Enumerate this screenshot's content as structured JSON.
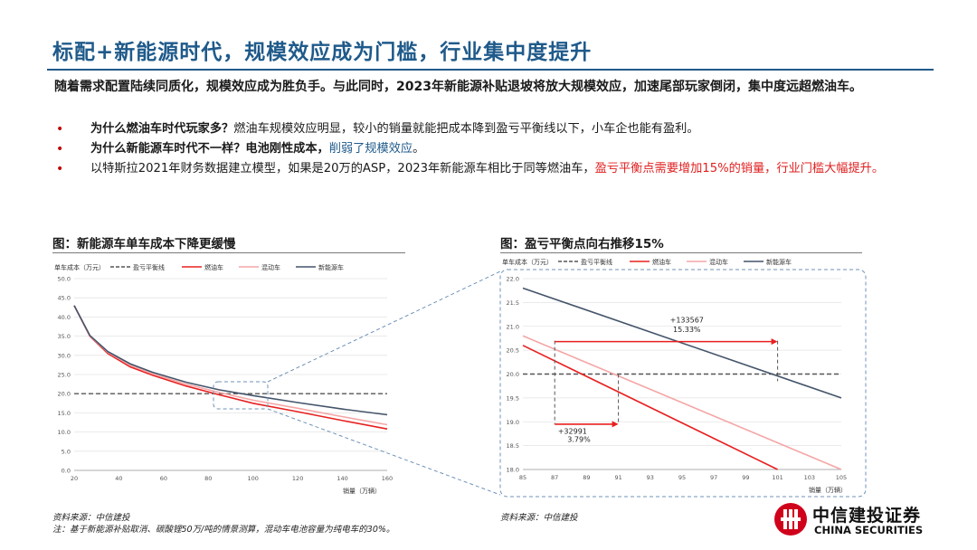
{
  "page": {
    "title": "标配+新能源时代，规模效应成为门槛，行业集中度提升",
    "intro": "随着需求配置陆续同质化，规模效应成为胜负手。与此同时，2023年新能源补贴退坡将放大规模效应，加速尾部玩家倒闭，集中度远超燃油车。",
    "bullet_symbol": "•",
    "bullets": [
      {
        "bold": "为什么燃油车时代玩家多？",
        "text": "燃油车规模效应明显，较小的销量就能把成本降到盈亏平衡线以下，小车企也能有盈利。"
      },
      {
        "bold": "为什么新能源车时代不一样？电池刚性成本，",
        "highlight": "削弱了规模效应",
        "tail": "。"
      },
      {
        "text": "以特斯拉2021年财务数据建立模型，如果是20万的ASP，2023年新能源车相比于同等燃油车，",
        "red": "盈亏平衡点需要增加15%的销量，行业门槛大幅提升。"
      }
    ],
    "colors": {
      "title": "#1f5a8a",
      "bullet": "#c00000",
      "red": "#e02020",
      "fuel": "#e82020",
      "hybrid": "#f4a6a6",
      "ev": "#44546a",
      "breakeven": "#555555"
    },
    "fig1": {
      "title": "图：新能源车单车成本下降更缓慢",
      "source": "资料来源：中信建投",
      "note": "注：基于新能源补贴取消、碳酸锂50万/吨的情景测算，混动车电池容量为纯电车的30%。"
    },
    "fig2": {
      "title": "图：盈亏平衡点向右推移15%",
      "source": "资料来源：中信建投",
      "annot_big_value": "+133567",
      "annot_big_pct": "15.33%",
      "annot_small_value": "+32991",
      "annot_small_pct": "3.79%"
    },
    "logo": {
      "cn": "中信建投证券",
      "en": "CHINA SECURITIES"
    }
  },
  "chart_data": [
    {
      "type": "line",
      "title": "图：新能源车单车成本下降更缓慢",
      "ylabel": "单车成本（万元）",
      "xlabel": "销量（万辆）",
      "x": [
        20,
        27,
        35,
        45,
        55,
        70,
        85,
        100,
        120,
        140,
        160
      ],
      "xticks": [
        "20",
        "40",
        "60",
        "80",
        "100",
        "120",
        "140",
        "160"
      ],
      "yticks": [
        "0.0",
        "5.0",
        "10.0",
        "15.0",
        "20.0",
        "25.0",
        "30.0",
        "35.0",
        "40.0",
        "45.0",
        "50.0"
      ],
      "xlim": [
        20,
        160
      ],
      "ylim": [
        0,
        50
      ],
      "series": [
        {
          "name": "盈亏平衡线",
          "style": "dashed",
          "values": [
            20,
            20,
            20,
            20,
            20,
            20,
            20,
            20,
            20,
            20,
            20
          ]
        },
        {
          "name": "燃油车",
          "values": [
            43,
            35,
            30.5,
            27,
            24.8,
            22,
            19.7,
            17.5,
            15.3,
            13,
            10.8
          ]
        },
        {
          "name": "混动车",
          "values": [
            43,
            35.1,
            30.8,
            27.4,
            25.2,
            22.5,
            20.3,
            18.3,
            16.2,
            14,
            11.9
          ]
        },
        {
          "name": "新能源车",
          "values": [
            43,
            35.2,
            31,
            27.8,
            25.6,
            23,
            21,
            19.5,
            17.7,
            16,
            14.5
          ]
        }
      ]
    },
    {
      "type": "line",
      "title": "图：盈亏平衡点向右推移15%",
      "ylabel": "单车成本（万元）",
      "xlabel": "销量（万辆）",
      "xticks": [
        "85",
        "87",
        "89",
        "91",
        "93",
        "95",
        "97",
        "99",
        "101",
        "103",
        "105"
      ],
      "yticks": [
        "18.0",
        "18.5",
        "19.0",
        "19.5",
        "20.0",
        "20.5",
        "21.0",
        "21.5",
        "22.0"
      ],
      "xlim": [
        85,
        105
      ],
      "ylim": [
        18,
        22
      ],
      "series": [
        {
          "name": "盈亏平衡线",
          "style": "dashed",
          "x": [
            85,
            105
          ],
          "values": [
            20,
            20
          ]
        },
        {
          "name": "燃油车",
          "x": [
            85,
            101
          ],
          "values": [
            20.6,
            18
          ]
        },
        {
          "name": "混动车",
          "x": [
            85,
            105
          ],
          "values": [
            20.8,
            18
          ]
        },
        {
          "name": "新能源车",
          "x": [
            85,
            105
          ],
          "values": [
            21.8,
            19.5
          ]
        }
      ]
    }
  ]
}
